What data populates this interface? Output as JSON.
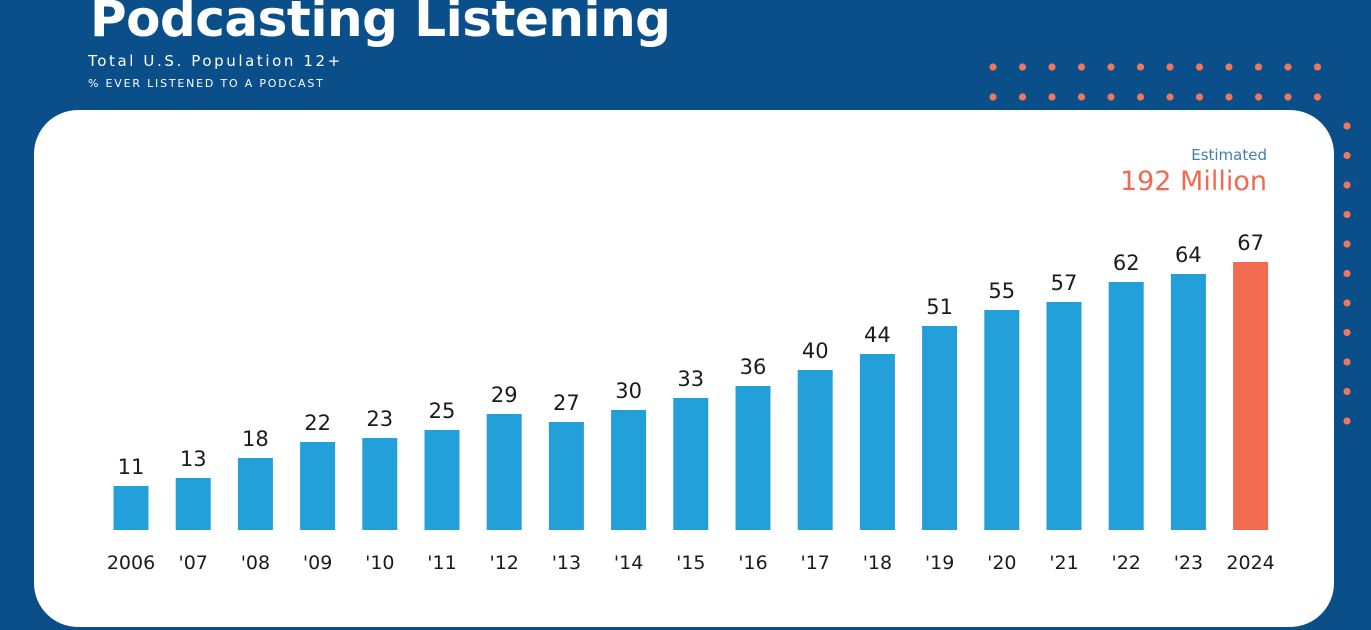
{
  "header": {
    "title": "Podcasting Listening",
    "subtitle": "Total U.S. Population 12+",
    "subtitle2": "% EVER LISTENED TO A PODCAST"
  },
  "callout": {
    "label": "Estimated",
    "value": "192 Million"
  },
  "colors": {
    "background": "#0a4f8a",
    "bar": "#239fd9",
    "highlight_bar": "#f26a50",
    "dots": "#f0775c"
  },
  "chart_data": {
    "type": "bar",
    "categories": [
      "2006",
      "'07",
      "'08",
      "'09",
      "'10",
      "'11",
      "'12",
      "'13",
      "'14",
      "'15",
      "'16",
      "'17",
      "'18",
      "'19",
      "'20",
      "'21",
      "'22",
      "'23",
      "2024"
    ],
    "values": [
      11,
      13,
      18,
      22,
      23,
      25,
      29,
      27,
      30,
      33,
      36,
      40,
      44,
      51,
      55,
      57,
      62,
      64,
      67
    ],
    "highlight_index": 18,
    "title": "Podcasting Listening",
    "xlabel": "",
    "ylabel": "",
    "ylim": [
      0,
      70
    ],
    "grid": false,
    "legend": "none"
  }
}
